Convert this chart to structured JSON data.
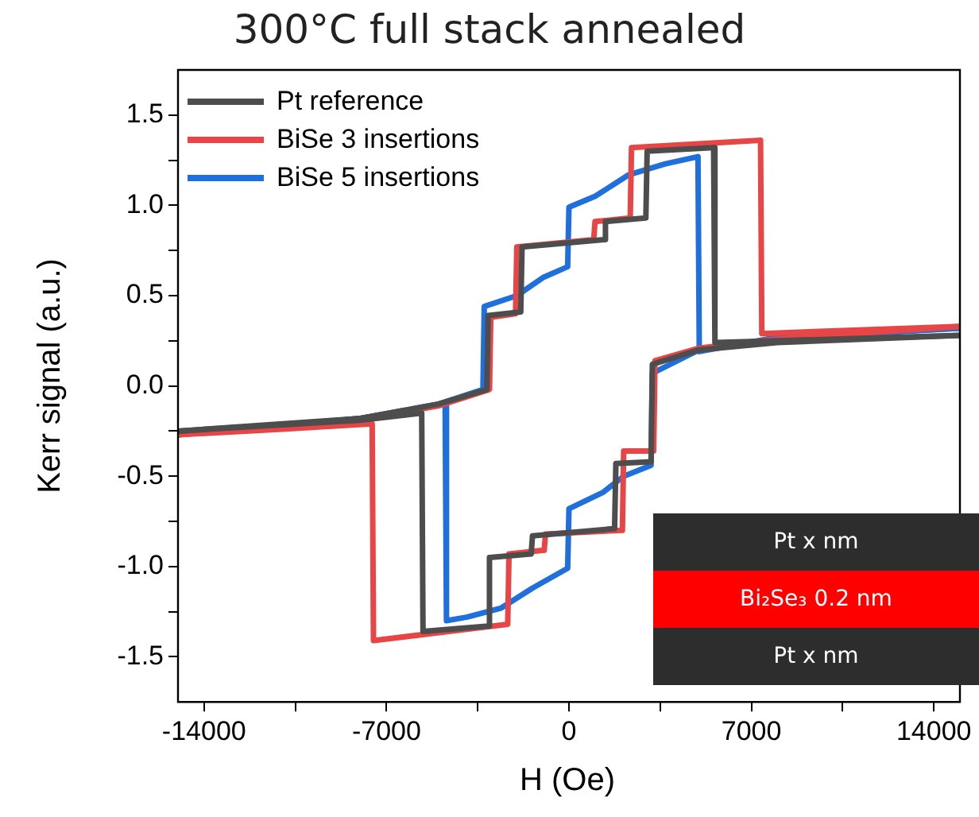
{
  "chart_data": {
    "type": "line",
    "title": "300°C full stack annealed",
    "xlabel": "H (Oe)",
    "ylabel": "Kerr signal (a.u.)",
    "xlim": [
      -15000,
      15000
    ],
    "ylim": [
      -1.75,
      1.75
    ],
    "xticks": [
      -14000,
      {
        "value": -10500,
        "label": null
      },
      -7000,
      {
        "value": -3500,
        "label": null
      },
      0,
      {
        "value": 3500,
        "label": null
      },
      7000,
      {
        "value": 10500,
        "label": null
      },
      14000
    ],
    "yticks": [
      {
        "value": -1.5,
        "label": "-1.5"
      },
      {
        "value": -1.25,
        "label": null
      },
      {
        "value": -1,
        "label": "-1.0"
      },
      {
        "value": -0.75,
        "label": null
      },
      {
        "value": -0.5,
        "label": "-0.5"
      },
      {
        "value": -0.25,
        "label": null
      },
      {
        "value": 0,
        "label": "0.0"
      },
      {
        "value": 0.25,
        "label": null
      },
      {
        "value": 0.5,
        "label": "0.5"
      },
      {
        "value": 0.75,
        "label": null
      },
      {
        "value": 1,
        "label": "1.0"
      },
      {
        "value": 1.25,
        "label": null
      },
      {
        "value": 1.5,
        "label": "1.5"
      }
    ],
    "grid": false,
    "legend": "top left",
    "marker": "none",
    "line_style": "solid",
    "annotations": [
      "Pt x nm",
      "Bi₂Se₃ 0.2 nm",
      "Pt x nm"
    ],
    "series": [
      {
        "name": "Pt reference",
        "color": "#4d4d4d",
        "x": [
          -15000,
          -8000,
          -5000,
          -3150,
          -3100,
          -1850,
          -1800,
          1350,
          1400,
          2950,
          3000,
          5550,
          5600,
          8000,
          15000
        ],
        "values": [
          -0.25,
          -0.18,
          -0.1,
          -0.02,
          0.39,
          0.41,
          0.77,
          0.81,
          0.91,
          0.93,
          1.3,
          1.32,
          0.24,
          0.25,
          0.28
        ]
      },
      {
        "color": "#4d4d4d",
        "x": [
          -15000,
          -8000,
          -5650,
          -5600,
          -3100,
          -3050,
          -1450,
          -1400,
          1750,
          1800,
          3150,
          3200,
          5000,
          8000,
          15000
        ],
        "values": [
          -0.25,
          -0.19,
          -0.15,
          -1.36,
          -1.33,
          -0.95,
          -0.93,
          -0.83,
          -0.79,
          -0.43,
          -0.42,
          0.12,
          0.2,
          0.24,
          0.28
        ]
      },
      {
        "name": "BiSe 3 insertions",
        "color": "#e84646",
        "x": [
          -15000,
          -8000,
          -5000,
          -3050,
          -3000,
          -2050,
          -2000,
          950,
          1000,
          2350,
          2400,
          7350,
          7400,
          15000
        ],
        "values": [
          -0.27,
          -0.19,
          -0.11,
          -0.02,
          0.38,
          0.4,
          0.77,
          0.81,
          0.91,
          0.93,
          1.32,
          1.36,
          0.29,
          0.33
        ]
      },
      {
        "color": "#e84646",
        "x": [
          -15000,
          -11000,
          -7550,
          -7500,
          -2350,
          -2300,
          -950,
          -900,
          2050,
          2100,
          3250,
          3300,
          5000,
          8000,
          15000
        ],
        "values": [
          -0.27,
          -0.24,
          -0.21,
          -1.41,
          -1.32,
          -0.93,
          -0.91,
          -0.82,
          -0.8,
          -0.36,
          -0.36,
          0.14,
          0.21,
          0.26,
          0.33
        ]
      },
      {
        "name": "BiSe 5 insertions",
        "color": "#1f6fdc",
        "x": [
          -15000,
          -8000,
          -5000,
          -3300,
          -3250,
          -2000,
          -1000,
          -50,
          0,
          1000,
          2300,
          3700,
          4950,
          5000,
          8000,
          15000
        ],
        "values": [
          -0.27,
          -0.18,
          -0.1,
          -0.02,
          0.44,
          0.5,
          0.6,
          0.66,
          0.99,
          1.05,
          1.17,
          1.23,
          1.27,
          0.19,
          0.27,
          0.32
        ]
      },
      {
        "color": "#1f6fdc",
        "x": [
          -15000,
          -8000,
          -4750,
          -4700,
          -3900,
          -2600,
          -1400,
          -50,
          0,
          1300,
          2100,
          3150,
          3200,
          5000,
          8000,
          15000
        ],
        "values": [
          -0.27,
          -0.18,
          -0.1,
          -1.3,
          -1.28,
          -1.23,
          -1.12,
          -1.01,
          -0.68,
          -0.59,
          -0.5,
          -0.44,
          0.07,
          0.2,
          0.26,
          0.32
        ]
      }
    ]
  }
}
